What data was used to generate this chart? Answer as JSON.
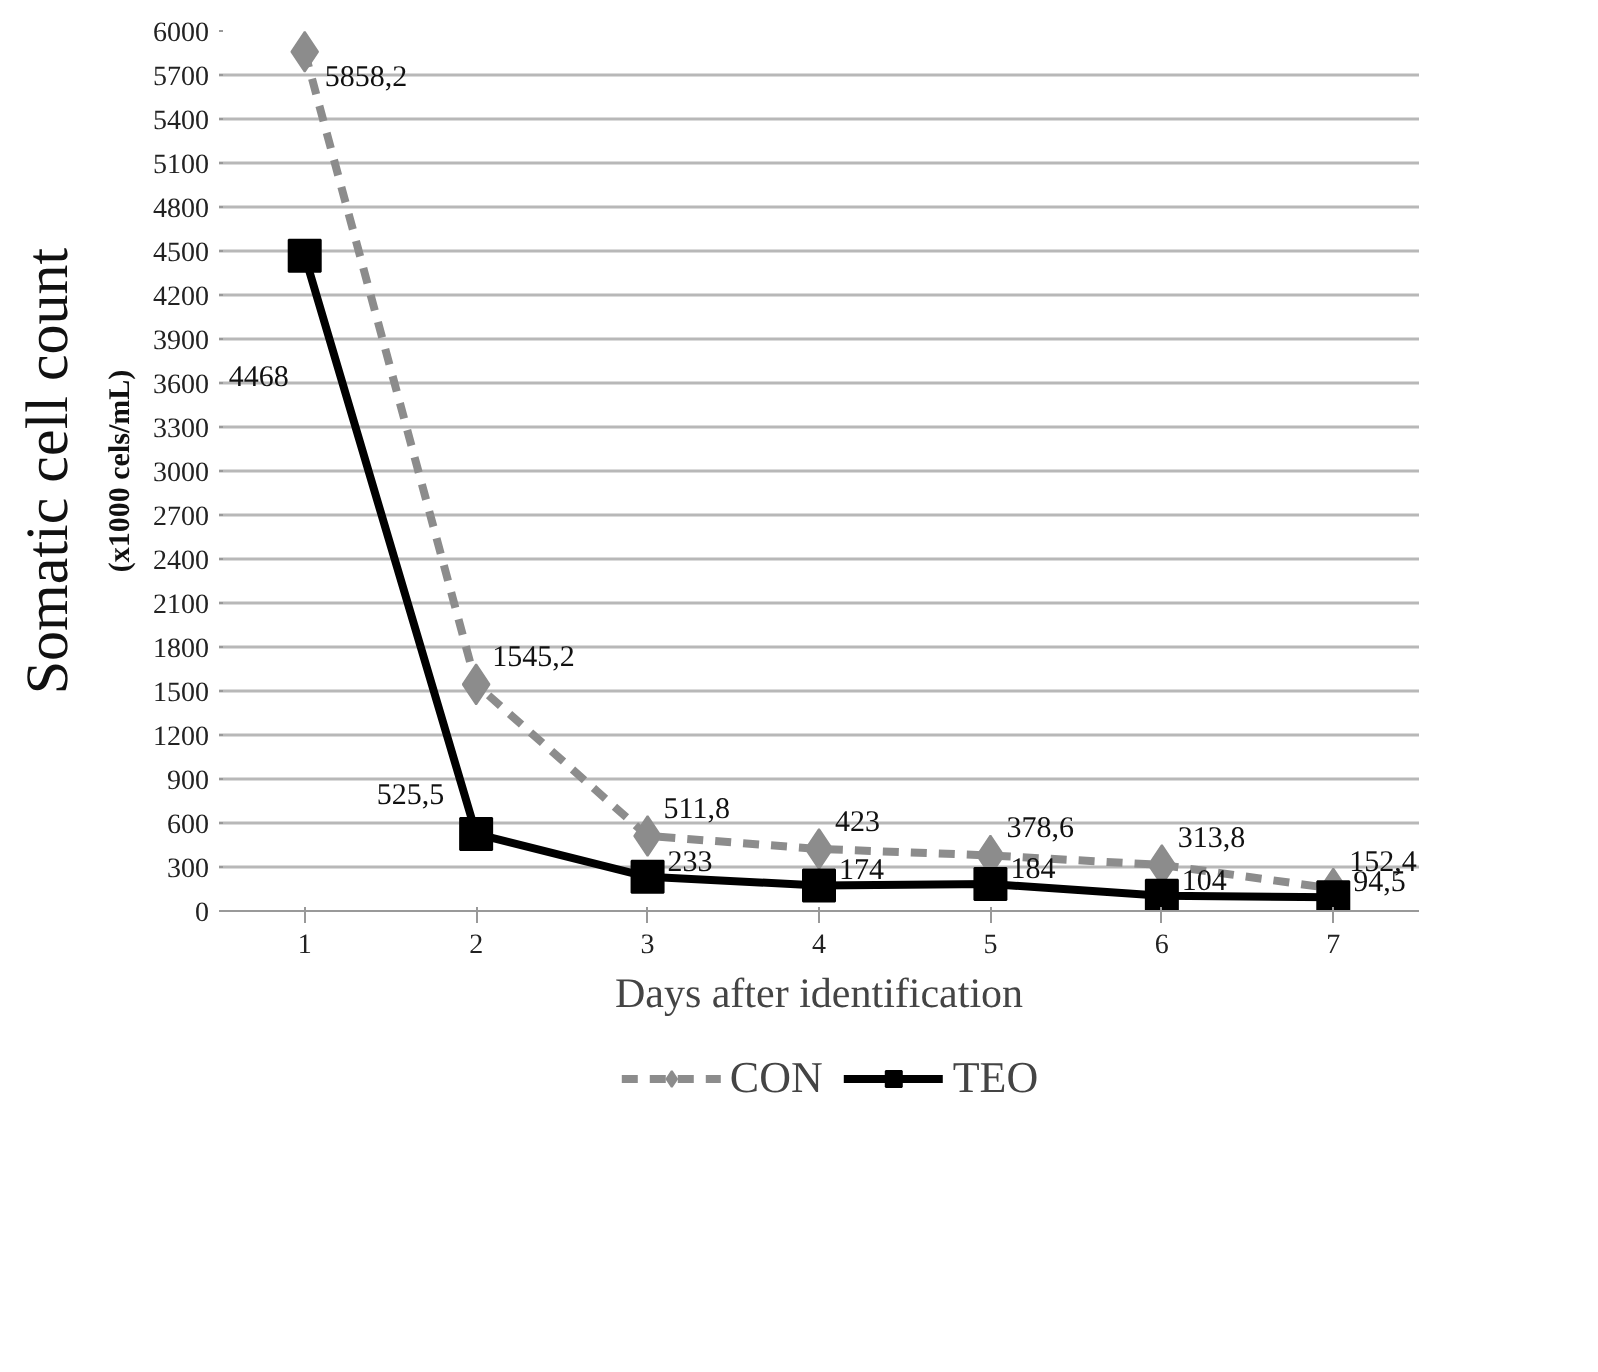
{
  "chart_data": {
    "type": "line",
    "xlabel": "Days after identification",
    "ylabel": "Somatic cell count",
    "annotations": [
      "(x1000 cels/mL)"
    ],
    "categories": [
      "1",
      "2",
      "3",
      "4",
      "5",
      "6",
      "7"
    ],
    "ylim": [
      0,
      6000
    ],
    "yticks": [
      0,
      300,
      600,
      900,
      1200,
      1500,
      1800,
      2100,
      2400,
      2700,
      3000,
      3300,
      3600,
      3900,
      4200,
      4500,
      4800,
      5100,
      5400,
      5700,
      6000
    ],
    "grid": "y",
    "legend": "bottom",
    "series": [
      {
        "name": "CON",
        "color": "#8c8c8c",
        "marker": "diamond",
        "line_style": "dashed",
        "values": [
          5858.2,
          1545.2,
          511.8,
          423,
          378.6,
          313.8,
          152.4
        ],
        "value_labels": [
          "5858,2",
          "1545,2",
          "511,8",
          "423",
          "378,6",
          "313,8",
          "152,4"
        ]
      },
      {
        "name": "TEO",
        "color": "#000000",
        "marker": "square",
        "line_style": "solid",
        "values": [
          4468,
          525.5,
          233,
          174,
          184,
          104,
          94.5
        ],
        "value_labels": [
          "4468",
          "525,5",
          "233",
          "174",
          "184",
          "104",
          "94,5"
        ]
      }
    ]
  }
}
